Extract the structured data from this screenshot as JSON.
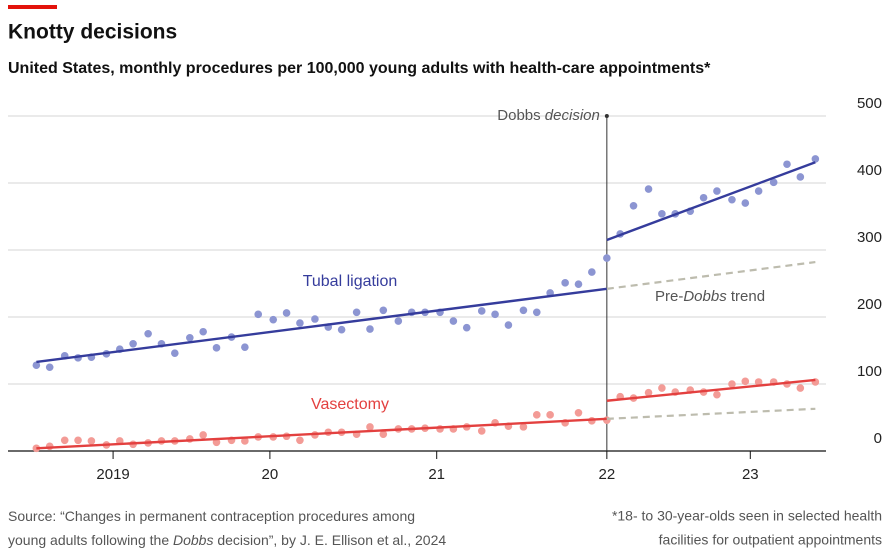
{
  "chart_data": {
    "type": "scatter",
    "title": "Knotty decisions",
    "subtitle": "United States, monthly procedures per 100,000 young adults with health-care appointments*",
    "x": [
      2019,
      2019.08,
      2019.17,
      2019.25,
      2019.33,
      2019.42,
      2019.5,
      2019.58,
      2019.67,
      2019.75,
      2019.83,
      2019.92,
      2020,
      2020.08,
      2020.17,
      2020.25,
      2020.33,
      2020.42,
      2020.5,
      2020.58,
      2020.67,
      2020.75,
      2020.83,
      2020.92,
      2021,
      2021.08,
      2021.17,
      2021.25,
      2021.33,
      2021.42,
      2021.5,
      2021.58,
      2021.67,
      2021.75,
      2021.83,
      2021.92,
      2022,
      2022.08,
      2022.17,
      2022.25,
      2022.33,
      2022.42,
      2022.5,
      2022.58,
      2022.67,
      2022.75,
      2022.83,
      2022.92,
      2023,
      2023.08,
      2023.17,
      2023.25,
      2023.33,
      2023.42,
      2023.5,
      2023.58,
      2023.67
    ],
    "series": [
      {
        "name": "Tubal ligation",
        "color": "#8c95d2",
        "line_color": "#353c9c",
        "values": [
          128,
          125,
          142,
          139,
          140,
          145,
          152,
          160,
          175,
          160,
          146,
          169,
          178,
          154,
          170,
          155,
          204,
          196,
          206,
          191,
          197,
          185,
          181,
          207,
          182,
          210,
          194,
          207,
          207,
          207,
          194,
          184,
          209,
          204,
          188,
          210,
          207,
          236,
          251,
          249,
          267,
          288,
          324,
          366,
          391,
          354,
          354,
          358,
          378,
          388,
          375,
          370,
          388,
          401,
          428,
          409,
          436
        ],
        "fits": [
          {
            "x": [
              2019,
              2022.42
            ],
            "values": [
              133,
              242
            ]
          },
          {
            "x": [
              2022.42,
              2023.67
            ],
            "values": [
              315,
              431
            ]
          }
        ],
        "trend": {
          "x": [
            2022.42,
            2023.67
          ],
          "values": [
            242,
            282
          ]
        }
      },
      {
        "name": "Vasectomy",
        "color": "#f39b96",
        "line_color": "#e3403f",
        "values": [
          4,
          7,
          16,
          16,
          15,
          9,
          15,
          10,
          12,
          15,
          15,
          18,
          24,
          13,
          16,
          15,
          21,
          21,
          22,
          16,
          24,
          28,
          28,
          25,
          36,
          25,
          33,
          33,
          34,
          33,
          33,
          36,
          30,
          42,
          37,
          36,
          54,
          54,
          42,
          57,
          45,
          46,
          81,
          79,
          87,
          94,
          88,
          91,
          88,
          84,
          100,
          104,
          103,
          103,
          100,
          94,
          103
        ],
        "fits": [
          {
            "x": [
              2019,
              2022.42
            ],
            "values": [
              4,
              48
            ]
          },
          {
            "x": [
              2022.42,
              2023.67
            ],
            "values": [
              75,
              106
            ]
          }
        ],
        "trend": {
          "x": [
            2022.42,
            2023.67
          ],
          "values": [
            48,
            63
          ]
        }
      }
    ],
    "trend_color": "#bdbcae",
    "event": {
      "x": 2022.42,
      "label": [
        "Dobbs",
        " decision"
      ]
    },
    "trend_label": [
      "Pre-",
      "Dobbs",
      " trend"
    ],
    "xlim": [
      2018.83,
      2023.75
    ],
    "xticks": [
      {
        "value": 2019.46,
        "label": "2019"
      },
      {
        "value": 2020.4,
        "label": "20"
      },
      {
        "value": 2021.4,
        "label": "21"
      },
      {
        "value": 2022.42,
        "label": "22"
      },
      {
        "value": 2023.28,
        "label": "23"
      }
    ],
    "ylim": [
      0,
      500
    ],
    "yticks": [
      0,
      100,
      200,
      300,
      400,
      500
    ],
    "grid": true,
    "source": [
      [
        "Source: “Changes in permanent contraception procedures among"
      ],
      [
        "young adults following the ",
        "Dobbs",
        " decision”, by J. E. Ellison et al., 2024"
      ]
    ],
    "note": [
      "*18- to 30-year-olds seen in selected health",
      "facilities for outpatient appointments"
    ]
  }
}
